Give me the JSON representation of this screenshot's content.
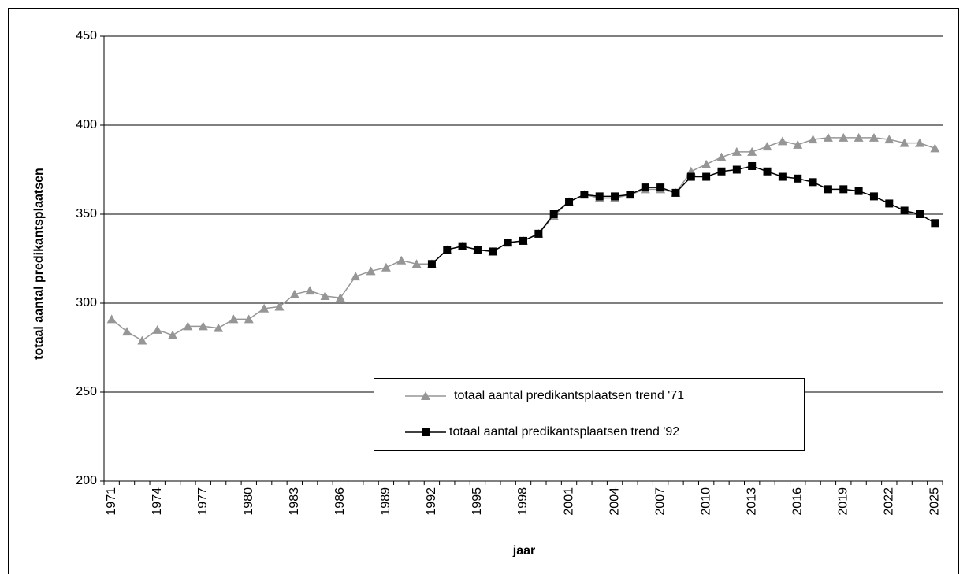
{
  "chart_data": {
    "type": "line",
    "x_label": "jaar",
    "y_label": "totaal aantal predikantsplaatsen",
    "categories": [
      "1971",
      null,
      null,
      "1974",
      null,
      null,
      "1977",
      null,
      null,
      "1980",
      null,
      null,
      "1983",
      null,
      null,
      "1986",
      null,
      null,
      "1989",
      null,
      null,
      "1992",
      null,
      null,
      "1995",
      null,
      null,
      "1998",
      null,
      null,
      "2001",
      null,
      null,
      "2004",
      null,
      null,
      "2007",
      null,
      null,
      "2010",
      null,
      null,
      "2013",
      null,
      null,
      "2016",
      null,
      null,
      "2019",
      null,
      null,
      "2022",
      null,
      null,
      "2025"
    ],
    "series": [
      {
        "name": "totaal aantal predikantsplaatsen trend '71",
        "color": "#969696",
        "marker": "triangle",
        "values": [
          291,
          284,
          279,
          285,
          282,
          287,
          287,
          286,
          291,
          291,
          297,
          298,
          305,
          307,
          304,
          303,
          315,
          318,
          320,
          324,
          322,
          322,
          330,
          332,
          330,
          329,
          334,
          335,
          339,
          349,
          357,
          361,
          359,
          359,
          361,
          364,
          364,
          362,
          374,
          378,
          382,
          385,
          385,
          388,
          391,
          389,
          392,
          393,
          393,
          393,
          393,
          392,
          390,
          390,
          387
        ]
      },
      {
        "name": "totaal aantal predikantsplaatsen trend '92",
        "color": "#000000",
        "marker": "square",
        "values": [
          null,
          null,
          null,
          null,
          null,
          null,
          null,
          null,
          null,
          null,
          null,
          null,
          null,
          null,
          null,
          null,
          null,
          null,
          null,
          null,
          null,
          322,
          330,
          332,
          330,
          329,
          334,
          335,
          339,
          350,
          357,
          361,
          360,
          360,
          361,
          365,
          365,
          362,
          371,
          371,
          374,
          375,
          377,
          374,
          371,
          370,
          368,
          364,
          364,
          363,
          360,
          356,
          352,
          350,
          345
        ]
      }
    ],
    "ylim": [
      200,
      450
    ],
    "yticks": [
      200,
      250,
      300,
      350,
      400,
      450
    ],
    "grid": true
  }
}
